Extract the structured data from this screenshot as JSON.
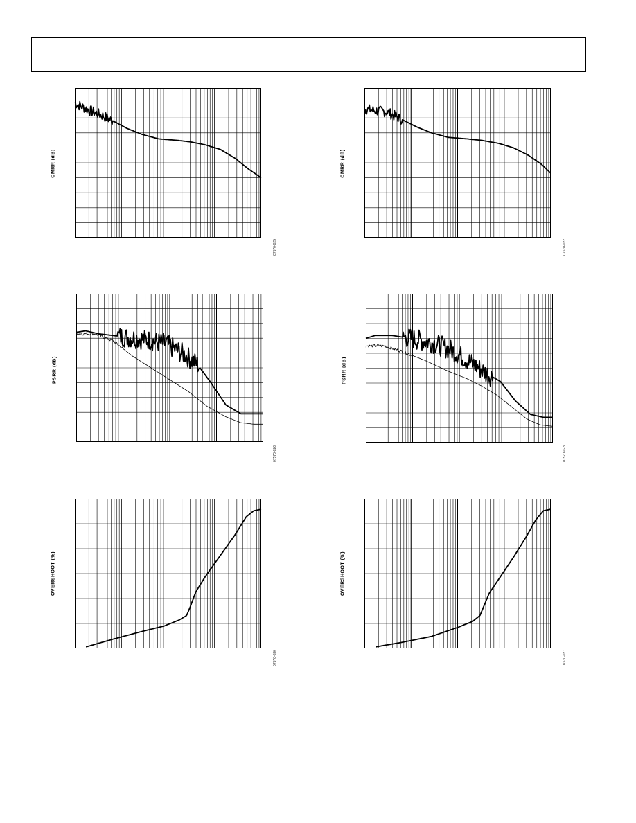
{
  "page": {
    "header_text": ""
  },
  "charts": [
    {
      "id": "cmrr-left",
      "y_label": "CMRR (dB)",
      "fig_code": "07570-025"
    },
    {
      "id": "cmrr-right",
      "y_label": "CMRR (dB)",
      "fig_code": "07570-022"
    },
    {
      "id": "psrr-left",
      "y_label": "PSRR (dB)",
      "fig_code": "07570-026"
    },
    {
      "id": "psrr-right",
      "y_label": "PSRR (dB)",
      "fig_code": "07570-023"
    },
    {
      "id": "os-left",
      "y_label": "OVERSHOOT (%)",
      "fig_code": "07570-030"
    },
    {
      "id": "os-right",
      "y_label": "OVERSHOOT (%)",
      "fig_code": "07570-027"
    }
  ],
  "chart_data": [
    {
      "type": "line",
      "x_scale": "log",
      "x_range": [
        0,
        1
      ],
      "y_range": [
        0,
        1
      ],
      "grid": true,
      "series": [
        {
          "points": [
            [
              0,
              0.9
            ],
            [
              0.03,
              0.88
            ],
            [
              0.08,
              0.85
            ],
            [
              0.14,
              0.82
            ],
            [
              0.22,
              0.77
            ],
            [
              0.28,
              0.73
            ],
            [
              0.36,
              0.69
            ],
            [
              0.45,
              0.66
            ],
            [
              0.55,
              0.65
            ],
            [
              0.62,
              0.64
            ],
            [
              0.7,
              0.62
            ],
            [
              0.78,
              0.59
            ],
            [
              0.86,
              0.53
            ],
            [
              0.93,
              0.46
            ],
            [
              1.0,
              0.4
            ]
          ],
          "noisy_until": 0.2,
          "weight": "heavy"
        }
      ]
    },
    {
      "type": "line",
      "x_scale": "log",
      "x_range": [
        0,
        1
      ],
      "y_range": [
        0,
        1
      ],
      "grid": true,
      "series": [
        {
          "points": [
            [
              0,
              0.86
            ],
            [
              0.05,
              0.85
            ],
            [
              0.12,
              0.84
            ],
            [
              0.2,
              0.79
            ],
            [
              0.28,
              0.74
            ],
            [
              0.36,
              0.7
            ],
            [
              0.45,
              0.67
            ],
            [
              0.55,
              0.66
            ],
            [
              0.63,
              0.65
            ],
            [
              0.72,
              0.63
            ],
            [
              0.8,
              0.6
            ],
            [
              0.88,
              0.55
            ],
            [
              0.95,
              0.49
            ],
            [
              1.0,
              0.43
            ]
          ],
          "noisy_until": 0.2,
          "weight": "heavy"
        }
      ]
    },
    {
      "type": "line",
      "x_scale": "log",
      "x_range": [
        0,
        1
      ],
      "y_range": [
        0,
        1
      ],
      "grid": true,
      "series": [
        {
          "points": [
            [
              0,
              0.74
            ],
            [
              0.05,
              0.75
            ],
            [
              0.12,
              0.73
            ],
            [
              0.25,
              0.71
            ],
            [
              0.38,
              0.69
            ],
            [
              0.48,
              0.66
            ],
            [
              0.58,
              0.59
            ],
            [
              0.65,
              0.52
            ],
            [
              0.72,
              0.4
            ],
            [
              0.8,
              0.25
            ],
            [
              0.88,
              0.19
            ],
            [
              0.95,
              0.19
            ],
            [
              1.0,
              0.19
            ]
          ],
          "noisy_from": 0.22,
          "noisy_until": 0.66,
          "weight": "heavy"
        },
        {
          "points": [
            [
              0,
              0.73
            ],
            [
              0.1,
              0.73
            ],
            [
              0.2,
              0.68
            ],
            [
              0.3,
              0.58
            ],
            [
              0.4,
              0.5
            ],
            [
              0.5,
              0.42
            ],
            [
              0.6,
              0.34
            ],
            [
              0.7,
              0.24
            ],
            [
              0.8,
              0.17
            ],
            [
              0.88,
              0.13
            ],
            [
              0.95,
              0.12
            ],
            [
              1.0,
              0.12
            ]
          ],
          "weight": "light"
        }
      ]
    },
    {
      "type": "line",
      "x_scale": "log",
      "x_range": [
        0,
        1
      ],
      "y_range": [
        0,
        1
      ],
      "grid": true,
      "series": [
        {
          "points": [
            [
              0,
              0.7
            ],
            [
              0.05,
              0.72
            ],
            [
              0.14,
              0.72
            ],
            [
              0.24,
              0.7
            ],
            [
              0.36,
              0.67
            ],
            [
              0.46,
              0.62
            ],
            [
              0.56,
              0.54
            ],
            [
              0.64,
              0.47
            ],
            [
              0.72,
              0.41
            ],
            [
              0.8,
              0.28
            ],
            [
              0.88,
              0.19
            ],
            [
              0.95,
              0.17
            ],
            [
              1.0,
              0.17
            ]
          ],
          "noisy_from": 0.2,
          "noisy_until": 0.68,
          "weight": "heavy"
        },
        {
          "points": [
            [
              0,
              0.65
            ],
            [
              0.1,
              0.65
            ],
            [
              0.2,
              0.61
            ],
            [
              0.32,
              0.55
            ],
            [
              0.44,
              0.48
            ],
            [
              0.54,
              0.43
            ],
            [
              0.62,
              0.38
            ],
            [
              0.7,
              0.32
            ],
            [
              0.78,
              0.24
            ],
            [
              0.86,
              0.16
            ],
            [
              0.93,
              0.12
            ],
            [
              1.0,
              0.11
            ]
          ],
          "weight": "light"
        }
      ]
    },
    {
      "type": "line",
      "x_scale": "log",
      "x_range": [
        0,
        1
      ],
      "y_range": [
        0,
        1
      ],
      "grid": true,
      "series": [
        {
          "points": [
            [
              0.06,
              0.01
            ],
            [
              0.2,
              0.06
            ],
            [
              0.35,
              0.11
            ],
            [
              0.48,
              0.15
            ],
            [
              0.56,
              0.19
            ],
            [
              0.6,
              0.22
            ],
            [
              0.62,
              0.28
            ],
            [
              0.65,
              0.38
            ],
            [
              0.7,
              0.48
            ],
            [
              0.78,
              0.62
            ],
            [
              0.86,
              0.76
            ],
            [
              0.92,
              0.88
            ],
            [
              0.96,
              0.92
            ],
            [
              1.0,
              0.93
            ]
          ],
          "weight": "heavy"
        }
      ]
    },
    {
      "type": "line",
      "x_scale": "log",
      "x_range": [
        0,
        1
      ],
      "y_range": [
        0,
        1
      ],
      "grid": true,
      "series": [
        {
          "points": [
            [
              0.06,
              0.01
            ],
            [
              0.2,
              0.04
            ],
            [
              0.36,
              0.08
            ],
            [
              0.5,
              0.14
            ],
            [
              0.58,
              0.18
            ],
            [
              0.62,
              0.22
            ],
            [
              0.64,
              0.28
            ],
            [
              0.67,
              0.37
            ],
            [
              0.73,
              0.48
            ],
            [
              0.8,
              0.61
            ],
            [
              0.87,
              0.75
            ],
            [
              0.92,
              0.86
            ],
            [
              0.96,
              0.92
            ],
            [
              1.0,
              0.93
            ]
          ],
          "weight": "heavy"
        }
      ]
    }
  ]
}
